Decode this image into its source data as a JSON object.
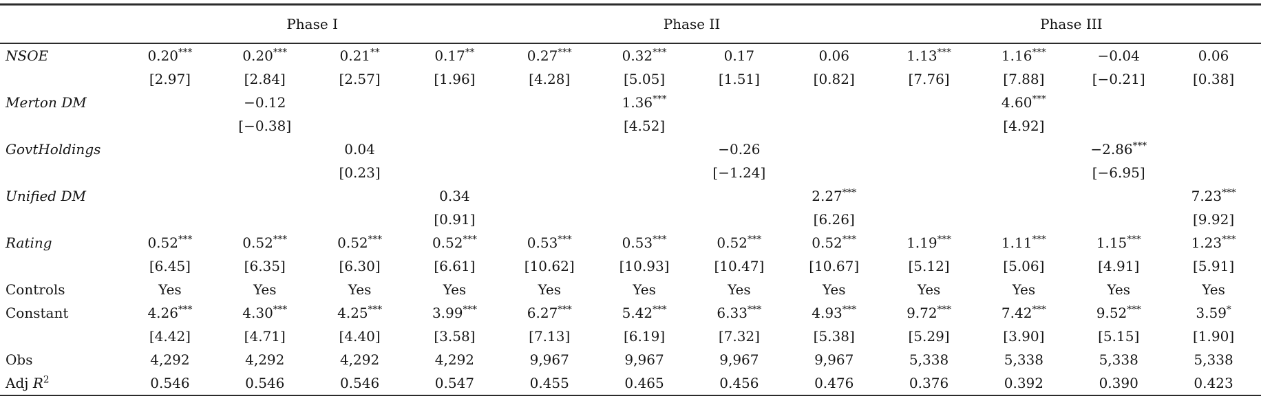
{
  "header": {
    "groups": [
      {
        "label": "Phase I",
        "span": 4
      },
      {
        "label": "Phase II",
        "span": 4
      },
      {
        "label": "Phase III",
        "span": 4
      }
    ]
  },
  "rows": [
    {
      "name": "nsoe",
      "label_parts": [
        {
          "t": "NSOE",
          "i": true
        }
      ],
      "coefs": [
        "0.20***",
        "0.20***",
        "0.21**",
        "0.17**",
        "0.27***",
        "0.32***",
        "0.17",
        "0.06",
        "1.13***",
        "1.16***",
        "−0.04",
        "0.06"
      ],
      "tstats": [
        "[2.97]",
        "[2.84]",
        "[2.57]",
        "[1.96]",
        "[4.28]",
        "[5.05]",
        "[1.51]",
        "[0.82]",
        "[7.76]",
        "[7.88]",
        "[−0.21]",
        "[0.38]"
      ]
    },
    {
      "name": "merton-dm",
      "label_parts": [
        {
          "t": "Merton DM",
          "i": true
        }
      ],
      "coefs": [
        "",
        "−0.12",
        "",
        "",
        "",
        "1.36***",
        "",
        "",
        "",
        "4.60***",
        "",
        ""
      ],
      "tstats": [
        "",
        "[−0.38]",
        "",
        "",
        "",
        "[4.52]",
        "",
        "",
        "",
        "[4.92]",
        "",
        ""
      ]
    },
    {
      "name": "govtholdings",
      "label_parts": [
        {
          "t": "GovtHoldings",
          "i": true
        }
      ],
      "coefs": [
        "",
        "",
        "0.04",
        "",
        "",
        "",
        "−0.26",
        "",
        "",
        "",
        "−2.86***",
        ""
      ],
      "tstats": [
        "",
        "",
        "[0.23]",
        "",
        "",
        "",
        "[−1.24]",
        "",
        "",
        "",
        "[−6.95]",
        ""
      ]
    },
    {
      "name": "unified-dm",
      "label_parts": [
        {
          "t": "Unified DM",
          "i": true
        }
      ],
      "coefs": [
        "",
        "",
        "",
        "0.34",
        "",
        "",
        "",
        "2.27***",
        "",
        "",
        "",
        "7.23***"
      ],
      "tstats": [
        "",
        "",
        "",
        "[0.91]",
        "",
        "",
        "",
        "[6.26]",
        "",
        "",
        "",
        "[9.92]"
      ]
    },
    {
      "name": "rating",
      "label_parts": [
        {
          "t": "Rating",
          "i": true
        }
      ],
      "coefs": [
        "0.52***",
        "0.52***",
        "0.52***",
        "0.52***",
        "0.53***",
        "0.53***",
        "0.52***",
        "0.52***",
        "1.19***",
        "1.11***",
        "1.15***",
        "1.23***"
      ],
      "tstats": [
        "[6.45]",
        "[6.35]",
        "[6.30]",
        "[6.61]",
        "[10.62]",
        "[10.93]",
        "[10.47]",
        "[10.67]",
        "[5.12]",
        "[5.06]",
        "[4.91]",
        "[5.91]"
      ]
    },
    {
      "name": "controls",
      "label_parts": [
        {
          "t": "Controls"
        }
      ],
      "values": [
        "Yes",
        "Yes",
        "Yes",
        "Yes",
        "Yes",
        "Yes",
        "Yes",
        "Yes",
        "Yes",
        "Yes",
        "Yes",
        "Yes"
      ]
    },
    {
      "name": "constant",
      "label_parts": [
        {
          "t": "Constant"
        }
      ],
      "coefs": [
        "4.26***",
        "4.30***",
        "4.25***",
        "3.99***",
        "6.27***",
        "5.42***",
        "6.33***",
        "4.93***",
        "9.72***",
        "7.42***",
        "9.52***",
        "3.59*"
      ],
      "tstats": [
        "[4.42]",
        "[4.71]",
        "[4.40]",
        "[3.58]",
        "[7.13]",
        "[6.19]",
        "[7.32]",
        "[5.38]",
        "[5.29]",
        "[3.90]",
        "[5.15]",
        "[1.90]"
      ]
    },
    {
      "name": "obs",
      "label_parts": [
        {
          "t": "Obs"
        }
      ],
      "values": [
        "4,292",
        "4,292",
        "4,292",
        "4,292",
        "9,967",
        "9,967",
        "9,967",
        "9,967",
        "5,338",
        "5,338",
        "5,338",
        "5,338"
      ]
    },
    {
      "name": "adj-r2",
      "label_parts": [
        {
          "t": "Adj "
        },
        {
          "t": "R",
          "i": true
        },
        {
          "t": "2",
          "sup": true
        }
      ],
      "values": [
        "0.546",
        "0.546",
        "0.546",
        "0.547",
        "0.455",
        "0.465",
        "0.456",
        "0.476",
        "0.376",
        "0.392",
        "0.390",
        "0.423"
      ]
    }
  ]
}
